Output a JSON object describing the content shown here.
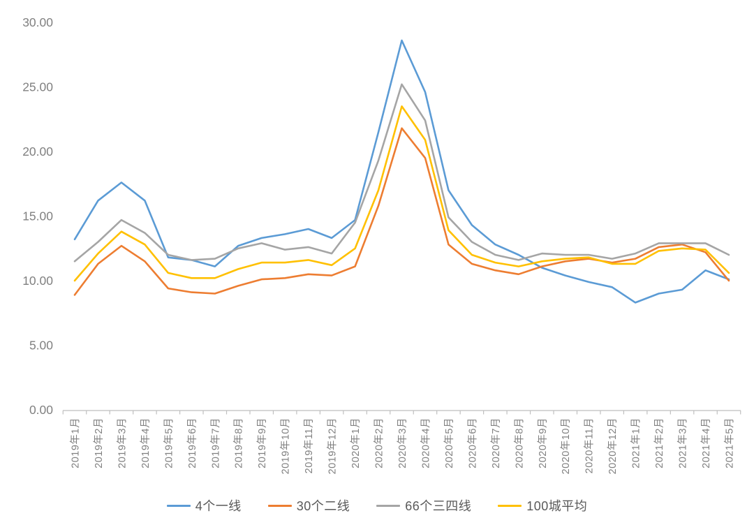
{
  "chart_data": {
    "type": "line",
    "title": "",
    "categories": [
      "2019年1月",
      "2019年2月",
      "2019年3月",
      "2019年4月",
      "2019年5月",
      "2019年6月",
      "2019年7月",
      "2019年8月",
      "2019年9月",
      "2019年10月",
      "2019年11月",
      "2019年12月",
      "2020年1月",
      "2020年2月",
      "2020年3月",
      "2020年4月",
      "2020年5月",
      "2020年6月",
      "2020年7月",
      "2020年8月",
      "2020年9月",
      "2020年10月",
      "2020年11月",
      "2020年12月",
      "2021年1月",
      "2021年2月",
      "2021年3月",
      "2021年4月",
      "2021年5月"
    ],
    "series": [
      {
        "name": "4个一线",
        "color": "#5B9BD5",
        "values": [
          13.2,
          16.2,
          17.6,
          16.2,
          11.8,
          11.6,
          11.1,
          12.7,
          13.3,
          13.6,
          14.0,
          13.3,
          14.7,
          21.5,
          28.6,
          24.6,
          17.0,
          14.3,
          12.8,
          12.0,
          11.0,
          10.4,
          9.9,
          9.5,
          8.3,
          9.0,
          9.3,
          10.8,
          10.1
        ]
      },
      {
        "name": "30个二线",
        "color": "#ED7D31",
        "values": [
          8.9,
          11.3,
          12.7,
          11.5,
          9.4,
          9.1,
          9.0,
          9.6,
          10.1,
          10.2,
          10.5,
          10.4,
          11.1,
          15.8,
          21.8,
          19.5,
          12.8,
          11.3,
          10.8,
          10.5,
          11.1,
          11.5,
          11.7,
          11.4,
          11.7,
          12.6,
          12.8,
          12.2,
          10.0
        ]
      },
      {
        "name": "66个三四线",
        "color": "#A5A5A5",
        "values": [
          11.5,
          13.0,
          14.7,
          13.7,
          12.0,
          11.6,
          11.7,
          12.5,
          12.9,
          12.4,
          12.6,
          12.1,
          14.5,
          19.3,
          25.2,
          22.4,
          14.9,
          13.0,
          12.0,
          11.6,
          12.1,
          12.0,
          12.0,
          11.7,
          12.1,
          12.9,
          12.9,
          12.9,
          12.0
        ]
      },
      {
        "name": "100城平均",
        "color": "#FFC000",
        "values": [
          10.0,
          12.1,
          13.8,
          12.8,
          10.6,
          10.2,
          10.2,
          10.9,
          11.4,
          11.4,
          11.6,
          11.2,
          12.5,
          17.0,
          23.5,
          20.9,
          13.9,
          12.0,
          11.4,
          11.1,
          11.5,
          11.7,
          11.8,
          11.3,
          11.3,
          12.3,
          12.5,
          12.4,
          10.6
        ]
      }
    ],
    "y_axis": {
      "min": 0,
      "max": 30,
      "tick_interval": 5,
      "tick_labels": [
        "0.00",
        "5.00",
        "10.00",
        "15.00",
        "20.00",
        "25.00",
        "30.00"
      ]
    },
    "x_axis": {
      "label_rotation": -90
    },
    "legend_position": "bottom",
    "grid": "off",
    "axis_color": "#BFBFBF",
    "tick_label_color": "#808080",
    "legend_text_color": "#595959",
    "background_color": "#FFFFFF"
  }
}
